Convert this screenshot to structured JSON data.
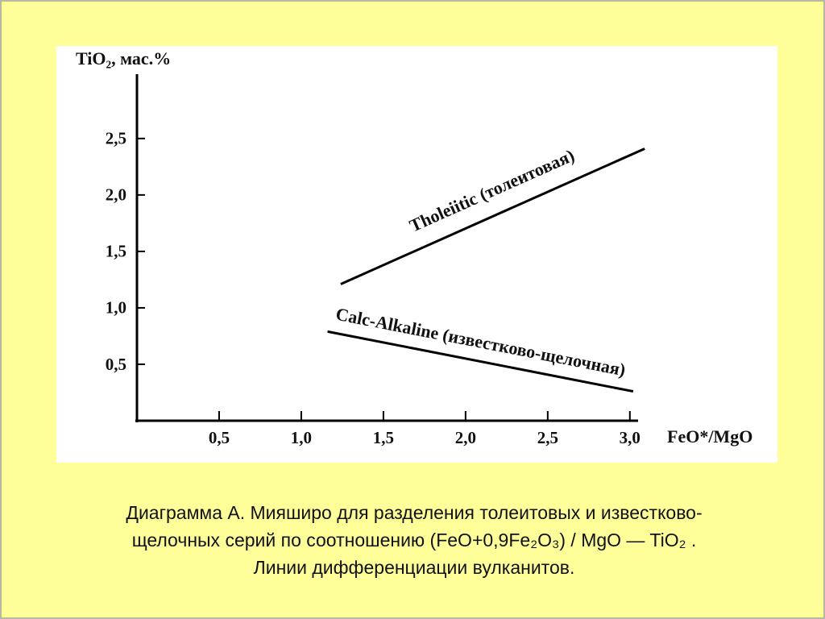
{
  "chart_data": {
    "type": "line",
    "ylabel": "TiO₂, мас.%",
    "xlabel": "FeO*/MgO",
    "xlim": [
      0,
      3.05
    ],
    "ylim": [
      0,
      3.07
    ],
    "xticks": [
      {
        "value": 0.5,
        "label": "0,5"
      },
      {
        "value": 1.0,
        "label": "1,0"
      },
      {
        "value": 1.5,
        "label": "1,5"
      },
      {
        "value": 2.0,
        "label": "2,0"
      },
      {
        "value": 2.5,
        "label": "2,5"
      },
      {
        "value": 3.0,
        "label": "3,0"
      }
    ],
    "yticks": [
      {
        "value": 0.5,
        "label": "0,5"
      },
      {
        "value": 1.0,
        "label": "1,0"
      },
      {
        "value": 1.5,
        "label": "1,5"
      },
      {
        "value": 2.0,
        "label": "2,0"
      },
      {
        "value": 2.5,
        "label": "2,5"
      }
    ],
    "series": [
      {
        "name": "Tholeiitic (толеитовая)",
        "color": "#000000",
        "x": [
          1.24,
          3.09
        ],
        "values": [
          1.21,
          2.41
        ]
      },
      {
        "name": "Calc-Alkaline (известково-щелочная)",
        "color": "#000000",
        "x": [
          1.16,
          3.02
        ],
        "values": [
          0.79,
          0.26
        ]
      }
    ]
  },
  "caption": [
    "Диаграмма А. Мияширо для разделения толеитовых и известково-",
    "щелочных серий по соотношению (FeO+0,9Fe₂O₃) / MgO — TiO₂ .",
    "Линии дифференциации вулканитов."
  ]
}
